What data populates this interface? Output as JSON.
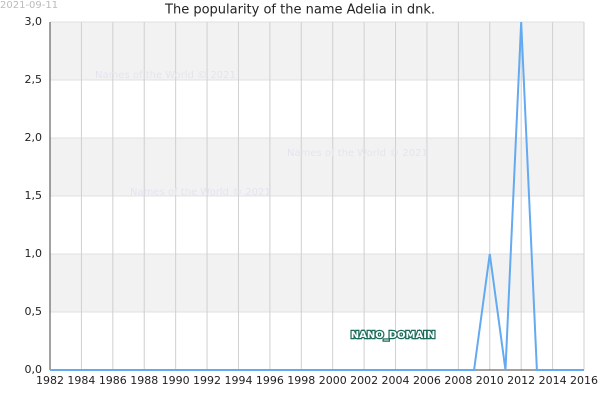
{
  "chart_data": {
    "type": "line",
    "title": "The popularity of the name Adelia in dnk.",
    "date_stamp": "2021-09-11",
    "watermarks": [
      "Names of the World © 2021",
      "Names of the World © 2021",
      "Names of the World © 2021"
    ],
    "brand": "NANO_DOMAIN",
    "x": [
      1982,
      1983,
      1984,
      1985,
      1986,
      1987,
      1988,
      1989,
      1990,
      1991,
      1992,
      1993,
      1994,
      1995,
      1996,
      1997,
      1998,
      1999,
      2000,
      2001,
      2002,
      2003,
      2004,
      2005,
      2006,
      2007,
      2008,
      2009,
      2010,
      2011,
      2012,
      2013,
      2014,
      2015,
      2016
    ],
    "values": [
      0,
      0,
      0,
      0,
      0,
      0,
      0,
      0,
      0,
      0,
      0,
      0,
      0,
      0,
      0,
      0,
      0,
      0,
      0,
      0,
      0,
      0,
      0,
      0,
      0,
      0,
      0,
      0,
      1,
      0,
      3,
      0,
      0,
      0,
      0
    ],
    "color": "#64aaf0",
    "xlim": [
      1982,
      2016
    ],
    "xticks": [
      1982,
      1984,
      1986,
      1988,
      1990,
      1992,
      1994,
      1996,
      1998,
      2000,
      2002,
      2004,
      2006,
      2008,
      2010,
      2012,
      2014,
      2016
    ],
    "ylim": [
      0,
      3
    ],
    "yticks": [
      {
        "value": 0,
        "label": "0,0"
      },
      {
        "value": 0.5,
        "label": "0,5"
      },
      {
        "value": 1,
        "label": "1,0"
      },
      {
        "value": 1.5,
        "label": "1,5"
      },
      {
        "value": 2,
        "label": "2,0"
      },
      {
        "value": 2.5,
        "label": "2,5"
      },
      {
        "value": 3,
        "label": "3,0"
      }
    ],
    "grid": true
  }
}
